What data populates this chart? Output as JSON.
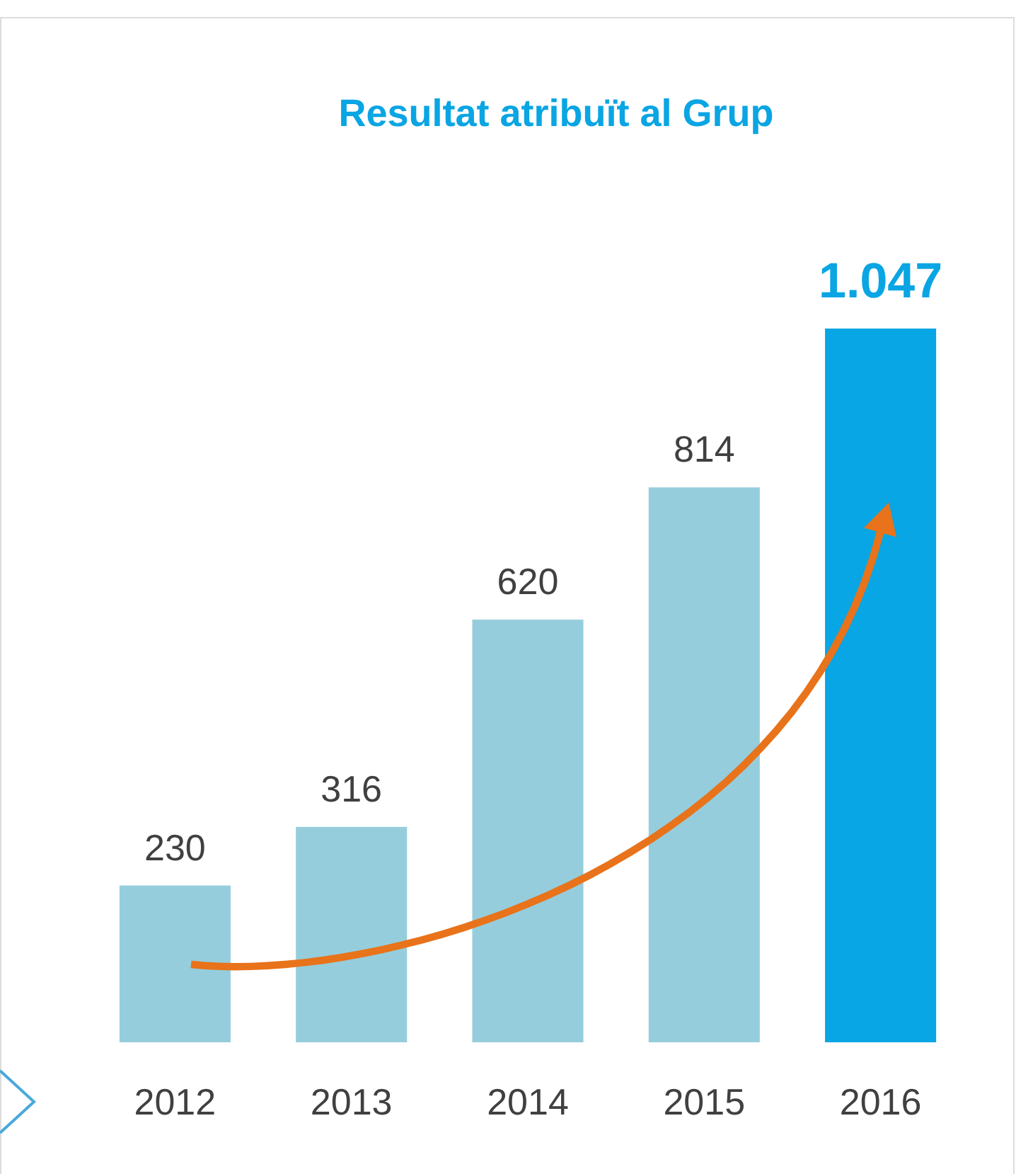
{
  "chart_data": {
    "type": "bar",
    "title": "Resultat atribuït al Grup",
    "categories": [
      "2012",
      "2013",
      "2014",
      "2015",
      "2016"
    ],
    "values": [
      230,
      316,
      620,
      814,
      1047
    ],
    "colors": [
      "#96cddc",
      "#96cddc",
      "#96cddc",
      "#96cddc",
      "#08a6e4"
    ],
    "value_labels": [
      "230",
      "316",
      "620",
      "814",
      "1.047"
    ]
  }
}
